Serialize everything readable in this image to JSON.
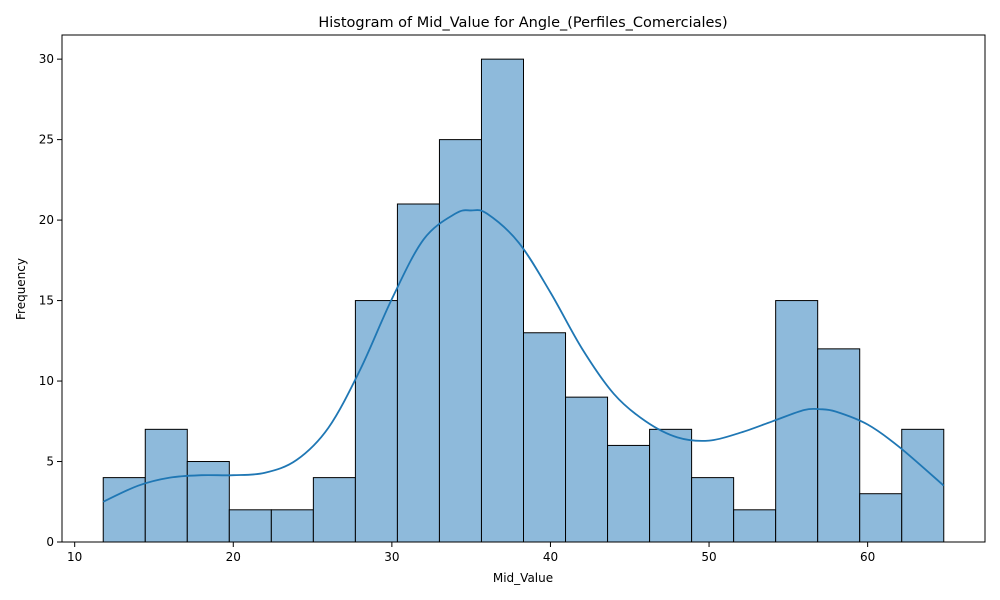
{
  "chart_data": {
    "type": "bar",
    "title": "Histogram of Mid_Value for Angle_(Perfiles_Comerciales)",
    "xlabel": "Mid_Value",
    "ylabel": "Frequency",
    "xlim": [
      9.2,
      67.4
    ],
    "ylim": [
      0,
      31.5
    ],
    "xticks": [
      10,
      20,
      30,
      40,
      50,
      60
    ],
    "yticks": [
      0,
      5,
      10,
      15,
      20,
      25,
      30
    ],
    "bin_edges": [
      11.8,
      14.45,
      17.1,
      19.75,
      22.4,
      25.05,
      27.7,
      30.35,
      33.0,
      35.65,
      38.3,
      40.95,
      43.6,
      46.25,
      48.9,
      51.55,
      54.2,
      56.85,
      59.5,
      62.15,
      64.8
    ],
    "values": [
      4,
      7,
      5,
      2,
      2,
      4,
      15,
      21,
      25,
      30,
      13,
      9,
      6,
      7,
      4,
      2,
      15,
      12,
      3,
      7
    ],
    "kde": {
      "x": [
        11.8,
        14.0,
        16.0,
        18.0,
        20.0,
        22.0,
        24.0,
        26.0,
        28.0,
        30.0,
        32.0,
        34.0,
        35.0,
        36.0,
        38.0,
        40.0,
        42.0,
        44.0,
        46.0,
        48.0,
        50.0,
        52.0,
        54.0,
        56.0,
        57.0,
        58.0,
        60.0,
        62.0,
        64.8
      ],
      "y": [
        2.5,
        3.5,
        4.0,
        4.15,
        4.15,
        4.3,
        5.1,
        7.1,
        10.7,
        15.1,
        18.8,
        20.4,
        20.6,
        20.4,
        18.6,
        15.5,
        12.0,
        9.2,
        7.5,
        6.5,
        6.3,
        6.8,
        7.5,
        8.2,
        8.25,
        8.1,
        7.3,
        5.9,
        3.5
      ]
    },
    "bar_color": "#8ebadb",
    "bar_edge_color": "#000000",
    "kde_color": "#1f77b4",
    "grid": false,
    "legend": "none"
  }
}
